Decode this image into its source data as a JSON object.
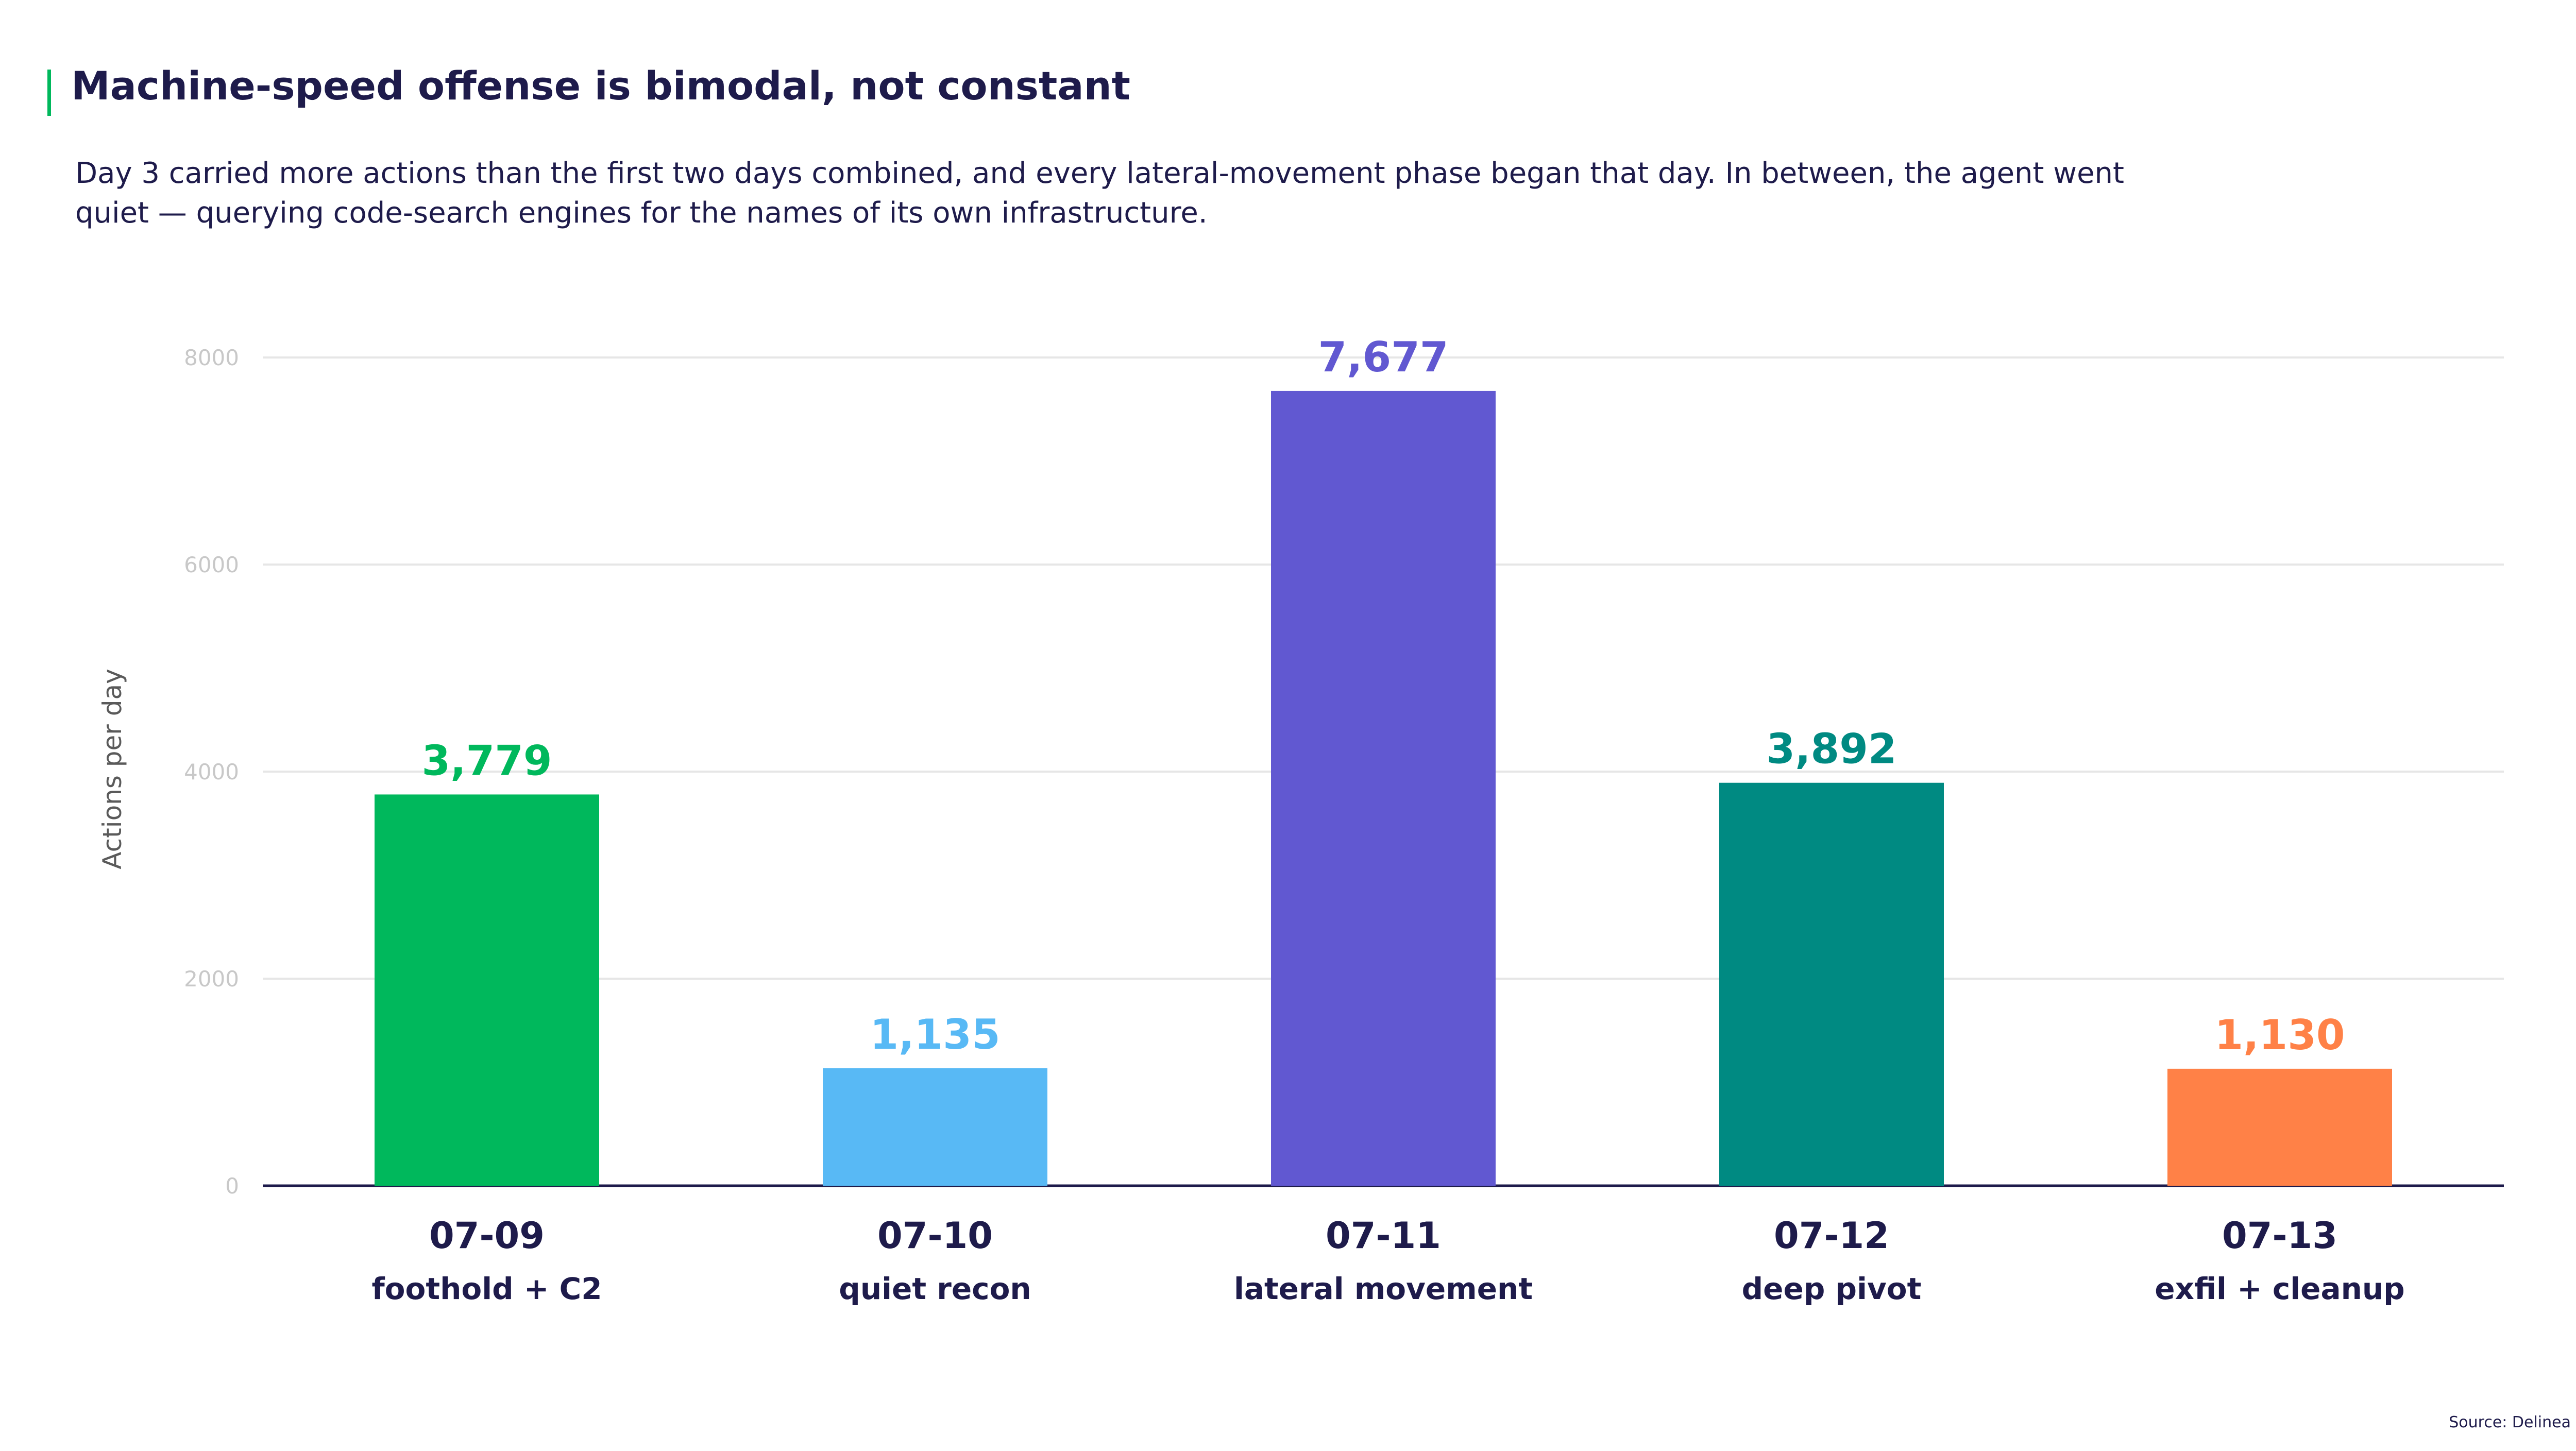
{
  "title": "Machine-speed offense is bimodal, not constant",
  "subtitle": "Day 3 carried more actions than the first two days combined, and every lateral-movement phase began that day. In between, the agent went quiet — querying code-search engines for the names of its own infrastructure.",
  "source": "Source: Delinea",
  "colors": {
    "title_accent": "#00b85c",
    "text": "#1e1b4b",
    "grid": "#e6e6e6",
    "axis": "#1e1b4b",
    "tick": "#c8c8c8"
  },
  "chart_data": {
    "type": "bar",
    "categories": [
      "07-09",
      "07-10",
      "07-11",
      "07-12",
      "07-13"
    ],
    "category_sublabels": [
      "foothold + C2",
      "quiet recon",
      "lateral movement",
      "deep pivot",
      "exfil + cleanup"
    ],
    "values": [
      3779,
      1135,
      7677,
      3892,
      1130
    ],
    "data_labels": [
      "3,779",
      "1,135",
      "7,677",
      "3,892",
      "1,130"
    ],
    "bar_colors": [
      "#00b85c",
      "#58b9f5",
      "#6158d1",
      "#008a82",
      "#ff8147"
    ],
    "ylabel": "Actions per day",
    "xlabel": "",
    "ylim": [
      0,
      8000
    ],
    "yticks": [
      0,
      2000,
      4000,
      6000,
      8000
    ],
    "grid": true,
    "legend": "none"
  }
}
